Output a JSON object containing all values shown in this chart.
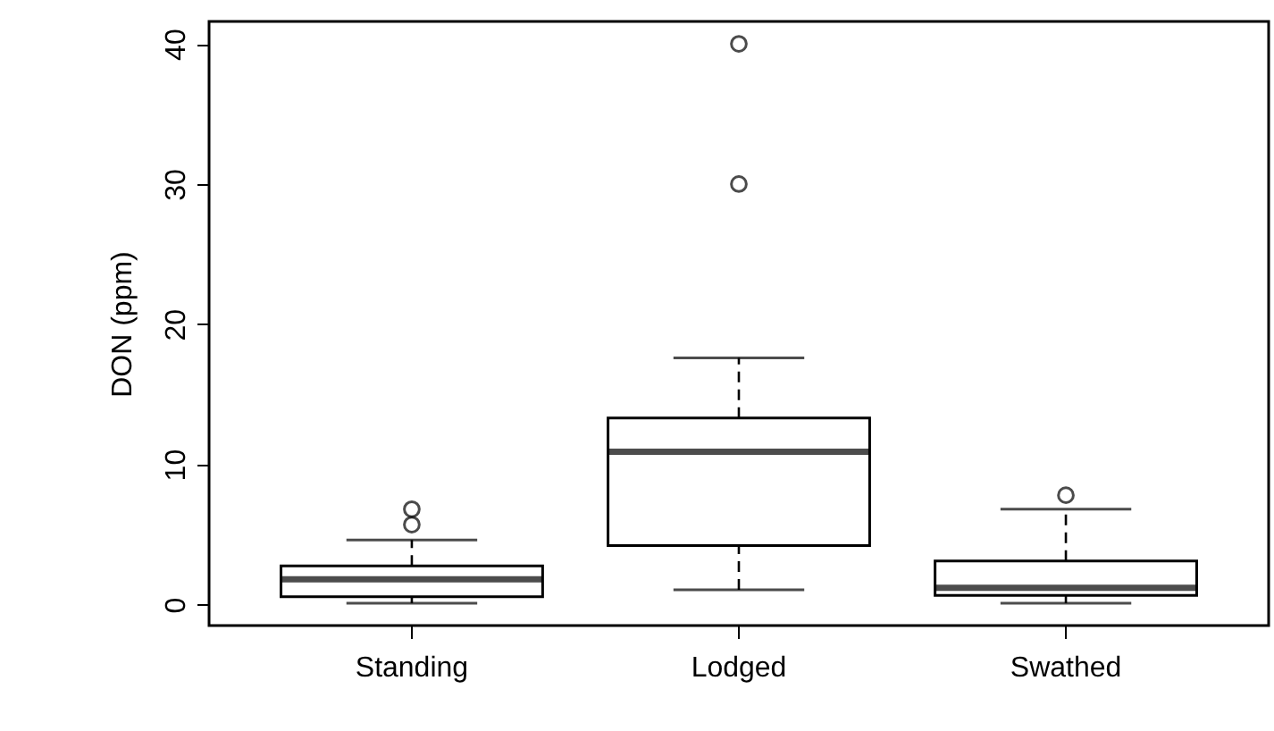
{
  "chart_data": {
    "type": "box",
    "ylabel": "DON (ppm)",
    "categories": [
      "Standing",
      "Lodged",
      "Swathed"
    ],
    "boxes": [
      {
        "low": 0.1,
        "q1": 0.55,
        "median": 1.8,
        "q3": 2.75,
        "high": 4.6,
        "outliers": [
          5.7,
          6.8
        ]
      },
      {
        "low": 1.05,
        "q1": 4.2,
        "median": 10.9,
        "q3": 13.3,
        "high": 17.6,
        "outliers": [
          30,
          40
        ]
      },
      {
        "low": 0.1,
        "q1": 0.65,
        "median": 1.2,
        "q3": 3.1,
        "high": 6.8,
        "outliers": [
          7.8
        ]
      }
    ],
    "ylim": [
      -1.5,
      41.6
    ],
    "yticks": [
      0,
      10,
      20,
      30,
      40
    ]
  }
}
